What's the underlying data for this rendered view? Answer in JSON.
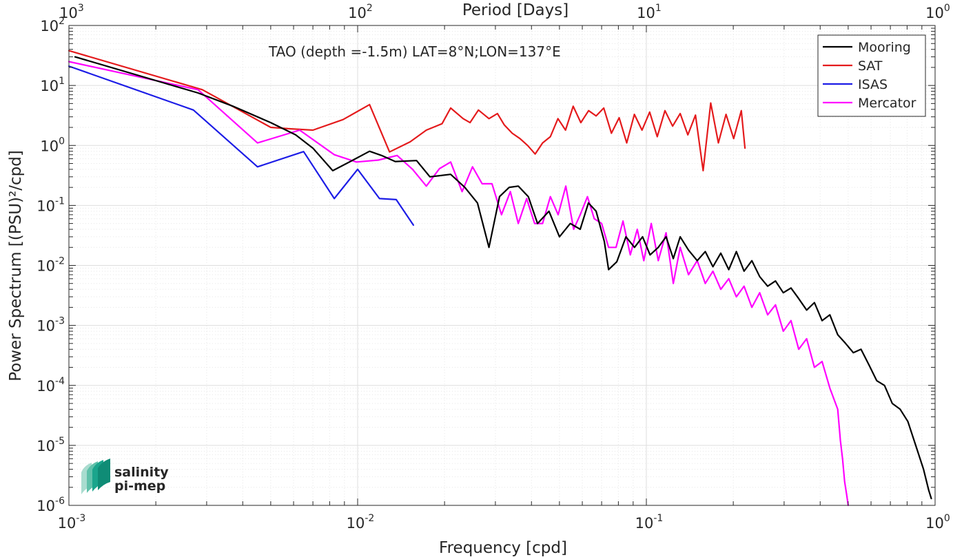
{
  "chart_data": {
    "type": "line",
    "title": "",
    "xlabel": "Frequency [cpd]",
    "ylabel": "Power Spectrum [(PSU)²/cpd]",
    "top_xlabel": "Period [Days]",
    "xscale": "log",
    "yscale": "log",
    "xlim": [
      0.001,
      1
    ],
    "ylim": [
      1e-06,
      100
    ],
    "grid": true,
    "legend_position": "top-right",
    "annotation": "TAO (depth =-1.5m) LAT=8°N;LON=137°E",
    "x_ticks": [
      {
        "base": "10",
        "exp": "-3"
      },
      {
        "base": "10",
        "exp": "-2"
      },
      {
        "base": "10",
        "exp": "-1"
      },
      {
        "base": "10",
        "exp": "0"
      }
    ],
    "y_ticks": [
      {
        "base": "10",
        "exp": "2"
      },
      {
        "base": "10",
        "exp": "1"
      },
      {
        "base": "10",
        "exp": "0"
      },
      {
        "base": "10",
        "exp": "-1"
      },
      {
        "base": "10",
        "exp": "-2"
      },
      {
        "base": "10",
        "exp": "-3"
      },
      {
        "base": "10",
        "exp": "-4"
      },
      {
        "base": "10",
        "exp": "-5"
      },
      {
        "base": "10",
        "exp": "-6"
      }
    ],
    "top_ticks": [
      {
        "base": "10",
        "exp": "3"
      },
      {
        "base": "10",
        "exp": "2"
      },
      {
        "base": "10",
        "exp": "1"
      },
      {
        "base": "10",
        "exp": "0"
      }
    ],
    "series": [
      {
        "name": "Mooring",
        "color": "#000000",
        "points": [
          [
            0.00105,
            30
          ],
          [
            0.0028,
            7.5
          ],
          [
            0.0037,
            4.5
          ],
          [
            0.005,
            2.4
          ],
          [
            0.0061,
            1.5
          ],
          [
            0.007,
            0.9
          ],
          [
            0.0082,
            0.38
          ],
          [
            0.0095,
            0.55
          ],
          [
            0.011,
            0.8
          ],
          [
            0.0121,
            0.68
          ],
          [
            0.0135,
            0.54
          ],
          [
            0.016,
            0.56
          ],
          [
            0.0178,
            0.3
          ],
          [
            0.021,
            0.33
          ],
          [
            0.0235,
            0.2
          ],
          [
            0.026,
            0.11
          ],
          [
            0.0285,
            0.02
          ],
          [
            0.031,
            0.14
          ],
          [
            0.0335,
            0.2
          ],
          [
            0.036,
            0.21
          ],
          [
            0.039,
            0.14
          ],
          [
            0.042,
            0.05
          ],
          [
            0.046,
            0.08
          ],
          [
            0.05,
            0.03
          ],
          [
            0.0545,
            0.05
          ],
          [
            0.059,
            0.04
          ],
          [
            0.063,
            0.11
          ],
          [
            0.067,
            0.08
          ],
          [
            0.0715,
            0.025
          ],
          [
            0.074,
            0.0085
          ],
          [
            0.079,
            0.0115
          ],
          [
            0.085,
            0.03
          ],
          [
            0.091,
            0.02
          ],
          [
            0.097,
            0.03
          ],
          [
            0.103,
            0.015
          ],
          [
            0.11,
            0.02
          ],
          [
            0.117,
            0.03
          ],
          [
            0.124,
            0.013
          ],
          [
            0.131,
            0.03
          ],
          [
            0.14,
            0.018
          ],
          [
            0.15,
            0.012
          ],
          [
            0.16,
            0.017
          ],
          [
            0.17,
            0.0095
          ],
          [
            0.181,
            0.016
          ],
          [
            0.193,
            0.0085
          ],
          [
            0.205,
            0.017
          ],
          [
            0.218,
            0.008
          ],
          [
            0.232,
            0.012
          ],
          [
            0.247,
            0.0065
          ],
          [
            0.263,
            0.0045
          ],
          [
            0.28,
            0.0055
          ],
          [
            0.298,
            0.0035
          ],
          [
            0.317,
            0.0042
          ],
          [
            0.337,
            0.0028
          ],
          [
            0.359,
            0.0018
          ],
          [
            0.382,
            0.0024
          ],
          [
            0.406,
            0.0012
          ],
          [
            0.432,
            0.0015
          ],
          [
            0.46,
            0.0007
          ],
          [
            0.49,
            0.0005
          ],
          [
            0.521,
            0.00035
          ],
          [
            0.554,
            0.0004
          ],
          [
            0.59,
            0.00022
          ],
          [
            0.628,
            0.00012
          ],
          [
            0.668,
            0.0001
          ],
          [
            0.711,
            5e-05
          ],
          [
            0.757,
            4e-05
          ],
          [
            0.805,
            2.5e-05
          ],
          [
            0.857,
            1e-05
          ],
          [
            0.912,
            4e-06
          ],
          [
            0.95,
            1.8e-06
          ],
          [
            0.97,
            1.3e-06
          ]
        ]
      },
      {
        "name": "SAT",
        "color": "#e41a1c",
        "points": [
          [
            0.001,
            38
          ],
          [
            0.0029,
            8.5
          ],
          [
            0.005,
            2
          ],
          [
            0.0058,
            1.9
          ],
          [
            0.007,
            1.8
          ],
          [
            0.0089,
            2.7
          ],
          [
            0.011,
            4.8
          ],
          [
            0.0129,
            0.78
          ],
          [
            0.0152,
            1.15
          ],
          [
            0.0173,
            1.8
          ],
          [
            0.0196,
            2.3
          ],
          [
            0.021,
            4.2
          ],
          [
            0.0232,
            2.8
          ],
          [
            0.0245,
            2.4
          ],
          [
            0.0262,
            3.9
          ],
          [
            0.0285,
            2.8
          ],
          [
            0.0305,
            3.4
          ],
          [
            0.0322,
            2.2
          ],
          [
            0.0343,
            1.6
          ],
          [
            0.0365,
            1.3
          ],
          [
            0.0388,
            1
          ],
          [
            0.0412,
            0.72
          ],
          [
            0.0437,
            1.1
          ],
          [
            0.0465,
            1.4
          ],
          [
            0.0494,
            2.8
          ],
          [
            0.0525,
            1.8
          ],
          [
            0.0558,
            4.5
          ],
          [
            0.0593,
            2.4
          ],
          [
            0.0631,
            3.8
          ],
          [
            0.067,
            3.1
          ],
          [
            0.0712,
            4.2
          ],
          [
            0.0757,
            1.6
          ],
          [
            0.0805,
            2.9
          ],
          [
            0.0855,
            1.1
          ],
          [
            0.0909,
            3.3
          ],
          [
            0.0966,
            1.8
          ],
          [
            0.1027,
            3.6
          ],
          [
            0.1091,
            1.4
          ],
          [
            0.116,
            3.8
          ],
          [
            0.1233,
            2.1
          ],
          [
            0.131,
            3.4
          ],
          [
            0.1392,
            1.5
          ],
          [
            0.148,
            3.2
          ],
          [
            0.1573,
            0.38
          ],
          [
            0.1671,
            5.1
          ],
          [
            0.1776,
            1.1
          ],
          [
            0.1888,
            3.3
          ],
          [
            0.2006,
            1.3
          ],
          [
            0.2132,
            3.8
          ],
          [
            0.2195,
            0.9
          ]
        ]
      },
      {
        "name": "ISAS",
        "color": "#1c1ce6",
        "points": [
          [
            0.001,
            21
          ],
          [
            0.0027,
            3.9
          ],
          [
            0.0045,
            0.44
          ],
          [
            0.0065,
            0.79
          ],
          [
            0.0083,
            0.13
          ],
          [
            0.01,
            0.4
          ],
          [
            0.0119,
            0.13
          ],
          [
            0.0136,
            0.125
          ],
          [
            0.0156,
            0.047
          ]
        ]
      },
      {
        "name": "Mercator",
        "color": "#ff00ff",
        "points": [
          [
            0.001,
            25
          ],
          [
            0.0028,
            8.5
          ],
          [
            0.0045,
            1.1
          ],
          [
            0.0063,
            1.8
          ],
          [
            0.0083,
            0.7
          ],
          [
            0.0099,
            0.53
          ],
          [
            0.0118,
            0.57
          ],
          [
            0.0137,
            0.68
          ],
          [
            0.0155,
            0.4
          ],
          [
            0.0173,
            0.21
          ],
          [
            0.0192,
            0.41
          ],
          [
            0.021,
            0.53
          ],
          [
            0.023,
            0.17
          ],
          [
            0.025,
            0.44
          ],
          [
            0.027,
            0.23
          ],
          [
            0.0292,
            0.23
          ],
          [
            0.0315,
            0.07
          ],
          [
            0.0338,
            0.17
          ],
          [
            0.036,
            0.05
          ],
          [
            0.0385,
            0.13
          ],
          [
            0.041,
            0.05
          ],
          [
            0.0437,
            0.05
          ],
          [
            0.0465,
            0.14
          ],
          [
            0.0495,
            0.07
          ],
          [
            0.0526,
            0.21
          ],
          [
            0.056,
            0.04
          ],
          [
            0.059,
            0.07
          ],
          [
            0.0625,
            0.14
          ],
          [
            0.066,
            0.06
          ],
          [
            0.07,
            0.05
          ],
          [
            0.074,
            0.02
          ],
          [
            0.0785,
            0.02
          ],
          [
            0.083,
            0.055
          ],
          [
            0.088,
            0.015
          ],
          [
            0.093,
            0.04
          ],
          [
            0.098,
            0.012
          ],
          [
            0.104,
            0.05
          ],
          [
            0.11,
            0.012
          ],
          [
            0.117,
            0.035
          ],
          [
            0.124,
            0.005
          ],
          [
            0.131,
            0.02
          ],
          [
            0.14,
            0.007
          ],
          [
            0.15,
            0.012
          ],
          [
            0.16,
            0.005
          ],
          [
            0.17,
            0.008
          ],
          [
            0.181,
            0.004
          ],
          [
            0.193,
            0.006
          ],
          [
            0.205,
            0.003
          ],
          [
            0.218,
            0.0045
          ],
          [
            0.232,
            0.002
          ],
          [
            0.247,
            0.0035
          ],
          [
            0.263,
            0.0015
          ],
          [
            0.28,
            0.0022
          ],
          [
            0.298,
            0.0008
          ],
          [
            0.317,
            0.0012
          ],
          [
            0.337,
            0.0004
          ],
          [
            0.359,
            0.0006
          ],
          [
            0.382,
            0.0002
          ],
          [
            0.406,
            0.00025
          ],
          [
            0.432,
            9e-05
          ],
          [
            0.46,
            4e-05
          ],
          [
            0.47,
            1.2e-05
          ],
          [
            0.478,
            6e-06
          ],
          [
            0.486,
            2.5e-06
          ],
          [
            0.494,
            1.5e-06
          ],
          [
            0.5,
            1e-06
          ]
        ]
      }
    ]
  },
  "logo": {
    "line1": "salinity",
    "line2": "pi-mep",
    "color": "#1aa58c"
  }
}
